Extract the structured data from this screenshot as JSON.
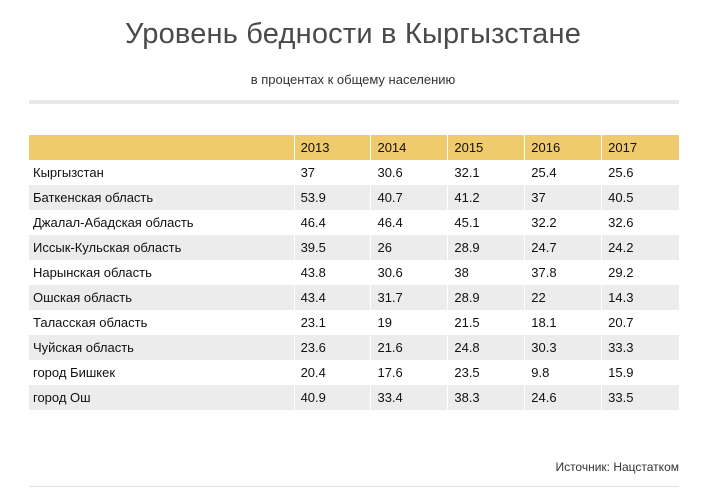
{
  "title": "Уровень бедности в Кыргызстане",
  "subtitle": "в процентах к общему населению",
  "source": "Источник: Нацстатком",
  "chart_data": {
    "type": "table",
    "title": "Уровень бедности в Кыргызстане",
    "subtitle": "в процентах к общему населению",
    "columns": [
      "",
      "2013",
      "2014",
      "2015",
      "2016",
      "2017"
    ],
    "years": [
      "2013",
      "2014",
      "2015",
      "2016",
      "2017"
    ],
    "rows": [
      {
        "region": "Кыргызстан",
        "values": [
          "37",
          "30.6",
          "32.1",
          "25.4",
          "25.6"
        ]
      },
      {
        "region": "Баткенская область",
        "values": [
          "53.9",
          "40.7",
          "41.2",
          "37",
          "40.5"
        ]
      },
      {
        "region": "Джалал-Абадская область",
        "values": [
          "46.4",
          "46.4",
          "45.1",
          "32.2",
          "32.6"
        ]
      },
      {
        "region": "Иссык-Кульская область",
        "values": [
          "39.5",
          "26",
          "28.9",
          "24.7",
          "24.2"
        ]
      },
      {
        "region": "Нарынская область",
        "values": [
          "43.8",
          "30.6",
          "38",
          "37.8",
          "29.2"
        ]
      },
      {
        "region": "Ошская область",
        "values": [
          "43.4",
          "31.7",
          "28.9",
          "22",
          "14.3"
        ]
      },
      {
        "region": "Таласская область",
        "values": [
          "23.1",
          "19",
          "21.5",
          "18.1",
          "20.7"
        ]
      },
      {
        "region": "Чуйская область",
        "values": [
          "23.6",
          "21.6",
          "24.8",
          "30.3",
          "33.3"
        ]
      },
      {
        "region": "город Бишкек",
        "values": [
          "20.4",
          "17.6",
          "23.5",
          "9.8",
          "15.9"
        ]
      },
      {
        "region": "город Ош",
        "values": [
          "40.9",
          "33.4",
          "38.3",
          "24.6",
          "33.5"
        ]
      }
    ],
    "source": "Источник: Нацстатком"
  },
  "colors": {
    "header_bg": "#efcb6d",
    "alt_row_bg": "#ececec",
    "title": "#4a4a4a"
  }
}
